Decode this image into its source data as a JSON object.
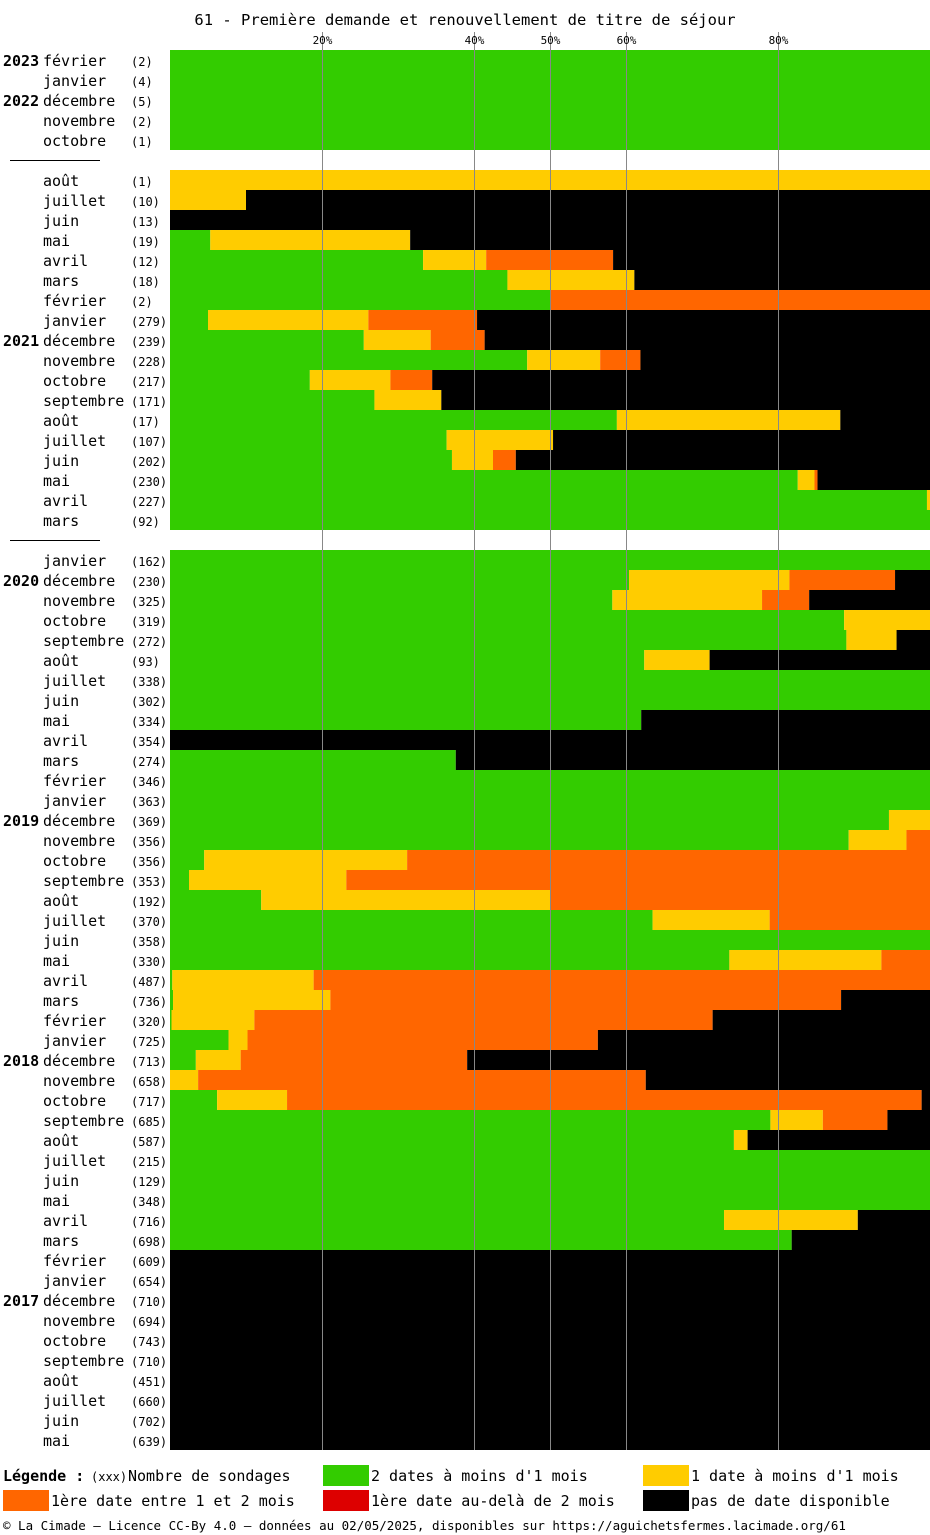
{
  "title": "61 - Première demande et renouvellement de titre de séjour",
  "chart_data": {
    "type": "bar",
    "orientation": "horizontal",
    "stacked": true,
    "percent_scale": true,
    "xlim": [
      0,
      100
    ],
    "gridlines": [
      20,
      40,
      50,
      60,
      80
    ],
    "tick_labels": [
      "20%",
      "40%",
      "50%",
      "60%",
      "80%"
    ],
    "series": [
      {
        "name": "2 dates à moins d'1 mois",
        "color": "#33cc00"
      },
      {
        "name": "1 date à moins d'1 mois",
        "color": "#ffcc00"
      },
      {
        "name": "1ère date entre 1 et 2 mois",
        "color": "#ff6600"
      },
      {
        "name": "1ère date au-delà de 2 mois",
        "color": "#dd0000"
      },
      {
        "name": "pas de date disponible",
        "color": "#000000"
      }
    ],
    "rows": [
      {
        "year": "2023",
        "month": "février",
        "count": "(2)",
        "values": [
          100,
          0,
          0,
          0,
          0
        ]
      },
      {
        "year": "",
        "month": "janvier",
        "count": "(4)",
        "values": [
          100,
          0,
          0,
          0,
          0
        ]
      },
      {
        "year": "2022",
        "month": "décembre",
        "count": "(5)",
        "values": [
          100,
          0,
          0,
          0,
          0
        ]
      },
      {
        "year": "",
        "month": "novembre",
        "count": "(2)",
        "values": [
          100,
          0,
          0,
          0,
          0
        ]
      },
      {
        "year": "",
        "month": "octobre",
        "count": "(1)",
        "values": [
          100,
          0,
          0,
          0,
          0
        ]
      },
      {
        "gap": true
      },
      {
        "year": "",
        "month": "août",
        "count": "(1)",
        "values": [
          0,
          100,
          0,
          0,
          0
        ]
      },
      {
        "year": "",
        "month": "juillet",
        "count": "(10)",
        "values": [
          0,
          10,
          0,
          0,
          90
        ]
      },
      {
        "year": "",
        "month": "juin",
        "count": "(13)",
        "values": [
          0,
          0,
          0,
          0,
          100
        ]
      },
      {
        "year": "",
        "month": "mai",
        "count": "(19)",
        "values": [
          5.3,
          26.3,
          0,
          0,
          68.4
        ]
      },
      {
        "year": "",
        "month": "avril",
        "count": "(12)",
        "values": [
          33.3,
          8.3,
          16.7,
          0,
          41.7
        ]
      },
      {
        "year": "",
        "month": "mars",
        "count": "(18)",
        "values": [
          44.4,
          16.7,
          0,
          0,
          38.9
        ]
      },
      {
        "year": "",
        "month": "février",
        "count": "(2)",
        "values": [
          50,
          0,
          50,
          0,
          0
        ]
      },
      {
        "year": "",
        "month": "janvier",
        "count": "(279)",
        "values": [
          5,
          21.1,
          14.3,
          0,
          59.6
        ]
      },
      {
        "year": "2021",
        "month": "décembre",
        "count": "(239)",
        "values": [
          25.5,
          8.8,
          7.1,
          0,
          58.6
        ]
      },
      {
        "year": "",
        "month": "novembre",
        "count": "(228)",
        "values": [
          47,
          9.6,
          5.3,
          0,
          38.1
        ]
      },
      {
        "year": "",
        "month": "octobre",
        "count": "(217)",
        "values": [
          18.4,
          10.6,
          5.5,
          0,
          65.5
        ]
      },
      {
        "year": "",
        "month": "septembre",
        "count": "(171)",
        "values": [
          26.9,
          8.8,
          0,
          0,
          64.3
        ]
      },
      {
        "year": "",
        "month": "août",
        "count": "(17)",
        "values": [
          58.8,
          29.4,
          0,
          0,
          11.8
        ]
      },
      {
        "year": "",
        "month": "juillet",
        "count": "(107)",
        "values": [
          36.4,
          14,
          0,
          0,
          49.6
        ]
      },
      {
        "year": "",
        "month": "juin",
        "count": "(202)",
        "values": [
          37.1,
          5.4,
          3,
          0,
          54.5
        ]
      },
      {
        "year": "",
        "month": "mai",
        "count": "(230)",
        "values": [
          82.6,
          2.2,
          0.4,
          0,
          14.8
        ]
      },
      {
        "year": "",
        "month": "avril",
        "count": "(227)",
        "values": [
          99.6,
          0.4,
          0,
          0,
          0
        ]
      },
      {
        "year": "",
        "month": "mars",
        "count": "(92)",
        "values": [
          100,
          0,
          0,
          0,
          0
        ]
      },
      {
        "gap": true
      },
      {
        "year": "",
        "month": "janvier",
        "count": "(162)",
        "values": [
          100,
          0,
          0,
          0,
          0
        ]
      },
      {
        "year": "2020",
        "month": "décembre",
        "count": "(230)",
        "values": [
          60.4,
          21.1,
          13.9,
          0,
          4.6
        ]
      },
      {
        "year": "",
        "month": "novembre",
        "count": "(325)",
        "values": [
          58.2,
          19.7,
          6.2,
          0,
          15.9
        ]
      },
      {
        "year": "",
        "month": "octobre",
        "count": "(319)",
        "values": [
          88.7,
          11.3,
          0,
          0,
          0
        ]
      },
      {
        "year": "",
        "month": "septembre",
        "count": "(272)",
        "values": [
          89,
          6.6,
          0,
          0,
          4.4
        ]
      },
      {
        "year": "",
        "month": "août",
        "count": "(93)",
        "values": [
          62.4,
          8.6,
          0,
          0,
          29
        ]
      },
      {
        "year": "",
        "month": "juillet",
        "count": "(338)",
        "values": [
          100,
          0,
          0,
          0,
          0
        ]
      },
      {
        "year": "",
        "month": "juin",
        "count": "(302)",
        "values": [
          100,
          0,
          0,
          0,
          0
        ]
      },
      {
        "year": "",
        "month": "mai",
        "count": "(334)",
        "values": [
          62,
          0,
          0,
          0,
          38
        ]
      },
      {
        "year": "",
        "month": "avril",
        "count": "(354)",
        "values": [
          0,
          0,
          0,
          0,
          100
        ]
      },
      {
        "year": "",
        "month": "mars",
        "count": "(274)",
        "values": [
          37.6,
          0,
          0,
          0,
          62.4
        ]
      },
      {
        "year": "",
        "month": "février",
        "count": "(346)",
        "values": [
          100,
          0,
          0,
          0,
          0
        ]
      },
      {
        "year": "",
        "month": "janvier",
        "count": "(363)",
        "values": [
          100,
          0,
          0,
          0,
          0
        ]
      },
      {
        "year": "2019",
        "month": "décembre",
        "count": "(369)",
        "values": [
          94.6,
          5.4,
          0,
          0,
          0
        ]
      },
      {
        "year": "",
        "month": "novembre",
        "count": "(356)",
        "values": [
          89.3,
          7.6,
          3.1,
          0,
          0
        ]
      },
      {
        "year": "",
        "month": "octobre",
        "count": "(356)",
        "values": [
          4.5,
          26.7,
          68.8,
          0,
          0
        ]
      },
      {
        "year": "",
        "month": "septembre",
        "count": "(353)",
        "values": [
          2.5,
          20.7,
          76.8,
          0,
          0
        ]
      },
      {
        "year": "",
        "month": "août",
        "count": "(192)",
        "values": [
          12,
          38,
          50,
          0,
          0
        ]
      },
      {
        "year": "",
        "month": "juillet",
        "count": "(370)",
        "values": [
          63.5,
          15.4,
          21.1,
          0,
          0
        ]
      },
      {
        "year": "",
        "month": "juin",
        "count": "(358)",
        "values": [
          100,
          0,
          0,
          0,
          0
        ]
      },
      {
        "year": "",
        "month": "mai",
        "count": "(330)",
        "values": [
          73.6,
          20,
          6.4,
          0,
          0
        ]
      },
      {
        "year": "",
        "month": "avril",
        "count": "(487)",
        "values": [
          0.3,
          18.6,
          81.1,
          0,
          0
        ]
      },
      {
        "year": "",
        "month": "mars",
        "count": "(736)",
        "values": [
          0.4,
          20.7,
          67.2,
          0,
          11.7
        ]
      },
      {
        "year": "",
        "month": "février",
        "count": "(320)",
        "values": [
          0.2,
          10.9,
          60.3,
          0,
          28.6
        ]
      },
      {
        "year": "",
        "month": "janvier",
        "count": "(725)",
        "values": [
          7.7,
          2.5,
          46.1,
          0,
          43.7
        ]
      },
      {
        "year": "2018",
        "month": "décembre",
        "count": "(713)",
        "values": [
          3.4,
          5.9,
          29.8,
          0,
          60.9
        ]
      },
      {
        "year": "",
        "month": "novembre",
        "count": "(658)",
        "values": [
          0,
          3.7,
          58.9,
          0,
          37.4
        ]
      },
      {
        "year": "",
        "month": "octobre",
        "count": "(717)",
        "values": [
          6.2,
          9.2,
          83.5,
          0,
          1.1
        ]
      },
      {
        "year": "",
        "month": "septembre",
        "count": "(685)",
        "values": [
          79,
          6.9,
          8.5,
          0,
          5.6
        ]
      },
      {
        "year": "",
        "month": "août",
        "count": "(587)",
        "values": [
          74.2,
          1.8,
          0,
          0,
          24
        ]
      },
      {
        "year": "",
        "month": "juillet",
        "count": "(215)",
        "values": [
          100,
          0,
          0,
          0,
          0
        ]
      },
      {
        "year": "",
        "month": "juin",
        "count": "(129)",
        "values": [
          100,
          0,
          0,
          0,
          0
        ]
      },
      {
        "year": "",
        "month": "mai",
        "count": "(348)",
        "values": [
          100,
          0,
          0,
          0,
          0
        ]
      },
      {
        "year": "",
        "month": "avril",
        "count": "(716)",
        "values": [
          72.9,
          17.6,
          0,
          0,
          9.5
        ]
      },
      {
        "year": "",
        "month": "mars",
        "count": "(698)",
        "values": [
          81.8,
          0,
          0,
          0,
          18.2
        ]
      },
      {
        "year": "",
        "month": "février",
        "count": "(609)",
        "values": [
          0,
          0,
          0,
          0,
          100
        ]
      },
      {
        "year": "",
        "month": "janvier",
        "count": "(654)",
        "values": [
          0,
          0,
          0,
          0,
          100
        ]
      },
      {
        "year": "2017",
        "month": "décembre",
        "count": "(710)",
        "values": [
          0,
          0,
          0,
          0,
          100
        ]
      },
      {
        "year": "",
        "month": "novembre",
        "count": "(694)",
        "values": [
          0,
          0,
          0,
          0,
          100
        ]
      },
      {
        "year": "",
        "month": "octobre",
        "count": "(743)",
        "values": [
          0,
          0,
          0,
          0,
          100
        ]
      },
      {
        "year": "",
        "month": "septembre",
        "count": "(710)",
        "values": [
          0,
          0,
          0,
          0,
          100
        ]
      },
      {
        "year": "",
        "month": "août",
        "count": "(451)",
        "values": [
          0,
          0,
          0,
          0,
          100
        ]
      },
      {
        "year": "",
        "month": "juillet",
        "count": "(660)",
        "values": [
          0,
          0,
          0,
          0,
          100
        ]
      },
      {
        "year": "",
        "month": "juin",
        "count": "(702)",
        "values": [
          0,
          0,
          0,
          0,
          100
        ]
      },
      {
        "year": "",
        "month": "mai",
        "count": "(639)",
        "values": [
          0,
          0,
          0,
          0,
          100
        ]
      }
    ]
  },
  "legend": {
    "heading": "Légende :",
    "count_marker": "(xxx)",
    "count_label": "Nombre de sondages"
  },
  "footer": "© La Cimade — Licence CC-By 4.0 — données au 02/05/2025, disponibles sur https://aguichetsfermes.lacimade.org/61"
}
